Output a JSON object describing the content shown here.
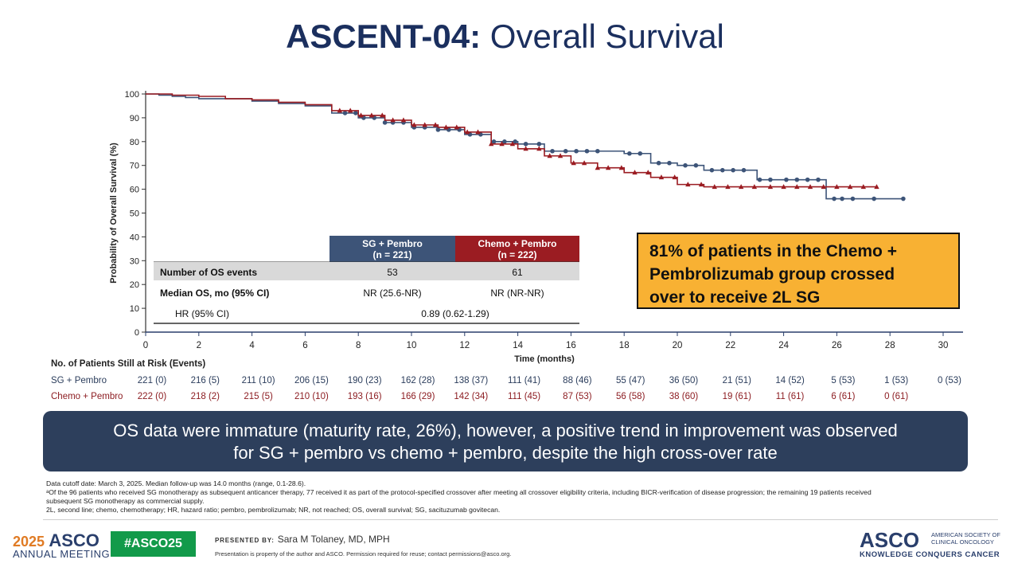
{
  "slide": {
    "title_bold": "ASCENT-04:",
    "title_rest": " Overall Survival"
  },
  "chart_data": {
    "type": "line",
    "title": "",
    "xlabel": "Time (months)",
    "ylabel": "Probability of Overall Survival (%)",
    "xlim": [
      0,
      30
    ],
    "ylim": [
      0,
      100
    ],
    "x_ticks": [
      0,
      2,
      4,
      6,
      8,
      10,
      12,
      14,
      16,
      18,
      20,
      22,
      24,
      26,
      28,
      30
    ],
    "y_ticks": [
      0,
      10,
      20,
      30,
      40,
      50,
      60,
      70,
      80,
      90,
      100
    ],
    "series": [
      {
        "name": "SG + Pembro",
        "color": "#3d5478",
        "marker": "circle",
        "points": [
          [
            0,
            100
          ],
          [
            0.5,
            99.5
          ],
          [
            1,
            99
          ],
          [
            1.5,
            98.5
          ],
          [
            2,
            98
          ],
          [
            3,
            98
          ],
          [
            4,
            97
          ],
          [
            5,
            96
          ],
          [
            6,
            95
          ],
          [
            7,
            92
          ],
          [
            8,
            90
          ],
          [
            9,
            88
          ],
          [
            10,
            86
          ],
          [
            11,
            85
          ],
          [
            12,
            83
          ],
          [
            13,
            80
          ],
          [
            14,
            79
          ],
          [
            15,
            76
          ],
          [
            16,
            76
          ],
          [
            17,
            76
          ],
          [
            18,
            75
          ],
          [
            19,
            71
          ],
          [
            20,
            70
          ],
          [
            21,
            68
          ],
          [
            22,
            68
          ],
          [
            23,
            64
          ],
          [
            24,
            64
          ],
          [
            25,
            64
          ],
          [
            25.6,
            56
          ],
          [
            27,
            56
          ],
          [
            28.5,
            56
          ]
        ],
        "censor_x": [
          7.5,
          7.9,
          8.2,
          8.6,
          9.0,
          9.3,
          9.7,
          10.1,
          10.5,
          11.0,
          11.4,
          11.8,
          12.2,
          12.6,
          13.1,
          13.5,
          13.9,
          14.3,
          14.8,
          15.3,
          15.8,
          16.2,
          16.6,
          17.0,
          18.2,
          18.6,
          19.3,
          19.7,
          20.3,
          20.7,
          21.3,
          21.7,
          22.1,
          22.5,
          23.1,
          23.5,
          24.1,
          24.5,
          24.9,
          25.3,
          25.9,
          26.2,
          26.6,
          27.4,
          28.5
        ]
      },
      {
        "name": "Chemo + Pembro",
        "color": "#9b1c22",
        "marker": "triangle",
        "points": [
          [
            0,
            100
          ],
          [
            1,
            99.5
          ],
          [
            2,
            99
          ],
          [
            3,
            98
          ],
          [
            4,
            97.5
          ],
          [
            5,
            96.5
          ],
          [
            6,
            95.5
          ],
          [
            7,
            93
          ],
          [
            8,
            91
          ],
          [
            9,
            89
          ],
          [
            10,
            87
          ],
          [
            11,
            86
          ],
          [
            12,
            84
          ],
          [
            13,
            79
          ],
          [
            14,
            77
          ],
          [
            15,
            74
          ],
          [
            16,
            71
          ],
          [
            17,
            69
          ],
          [
            18,
            67
          ],
          [
            19,
            65
          ],
          [
            20,
            62
          ],
          [
            21,
            61
          ],
          [
            22,
            61
          ],
          [
            23,
            61
          ],
          [
            24,
            61
          ],
          [
            25,
            61
          ],
          [
            26,
            61
          ],
          [
            27.5,
            61
          ]
        ],
        "censor_x": [
          7.3,
          7.7,
          8.1,
          8.5,
          8.9,
          9.3,
          9.7,
          10.1,
          10.5,
          10.9,
          11.3,
          11.7,
          12.1,
          12.5,
          13.0,
          13.4,
          13.8,
          14.3,
          14.8,
          15.2,
          15.6,
          16.1,
          16.5,
          17.0,
          17.4,
          17.9,
          18.4,
          18.9,
          19.4,
          19.9,
          20.4,
          20.9,
          21.4,
          21.9,
          22.4,
          22.9,
          23.5,
          24.0,
          24.5,
          25.0,
          25.5,
          26.0,
          26.5,
          27.0,
          27.5
        ]
      }
    ],
    "legend": "none"
  },
  "summary_table": {
    "col1_header_line1": "SG + Pembro",
    "col1_header_line2": "(n = 221)",
    "col2_header_line1": "Chemo + Pembro",
    "col2_header_line2": "(n = 222)",
    "row1_label": "Number of OS events",
    "row1_sg": "53",
    "row1_chemo": "61",
    "row2_label": "Median OS, mo (95% CI)",
    "row2_sg": "NR (25.6-NR)",
    "row2_chemo": "NR (NR-NR)",
    "row3_label": "HR (95% CI)",
    "row3_value": "0.89 (0.62-1.29)",
    "sg_color": "#3d5478",
    "chemo_color": "#9b1c22"
  },
  "risk_table": {
    "header": "No. of Patients Still at Risk (Events)",
    "sg_label": "SG + Pembro",
    "chemo_label": "Chemo + Pembro",
    "sg_values": [
      "221 (0)",
      "216 (5)",
      "211 (10)",
      "206 (15)",
      "190 (23)",
      "162 (28)",
      "138 (37)",
      "111 (41)",
      "88 (46)",
      "55 (47)",
      "36 (50)",
      "21 (51)",
      "14 (52)",
      "5 (53)",
      "1 (53)",
      "0 (53)"
    ],
    "chemo_values": [
      "222 (0)",
      "218 (2)",
      "215 (5)",
      "210 (10)",
      "193 (16)",
      "166 (29)",
      "142 (34)",
      "111 (45)",
      "87 (53)",
      "56 (58)",
      "38 (60)",
      "19 (61)",
      "11 (61)",
      "6 (61)",
      "0 (61)"
    ]
  },
  "callout": {
    "line1": "81% of patients in the Chemo +",
    "line2": "Pembrolizumab group crossed",
    "line3": "over to receive 2L SG"
  },
  "banner": {
    "line1": "OS data were immature (maturity rate, 26%), however, a positive trend in improvement was observed",
    "line2": "for SG + pembro vs chemo + pembro, despite the high cross-over rate"
  },
  "footnotes": {
    "line1": "Data cutoff date: March 3, 2025. Median follow-up was 14.0 months (range, 0.1-28.6).",
    "line2": "ᵃOf the 96 patients who received SG monotherapy as subsequent anticancer therapy, 77 received it as part of the protocol-specified crossover after meeting all crossover eligibility criteria, including BICR-verification of disease progression; the remaining 19 patients received",
    "line3": "subsequent SG monotherapy as commercial supply.",
    "line4": "2L, second line; chemo, chemotherapy; HR, hazard ratio; pembro, pembrolizumab; NR, not reached; OS, overall survival; SG, sacituzumab govitecan."
  },
  "footer": {
    "year": "2025",
    "asco": "ASCO",
    "meeting": "ANNUAL MEETING",
    "hashtag": "#ASCO25",
    "presented_label": "PRESENTED BY:",
    "presenter": "Sara M Tolaney, MD, MPH",
    "property_note": "Presentation is property of the author and ASCO. Permission required for reuse; contact permissions@asco.org.",
    "logo": "ASCO",
    "society_line1": "AMERICAN SOCIETY OF",
    "society_line2": "CLINICAL ONCOLOGY",
    "tagline": "KNOWLEDGE CONQUERS CANCER"
  }
}
